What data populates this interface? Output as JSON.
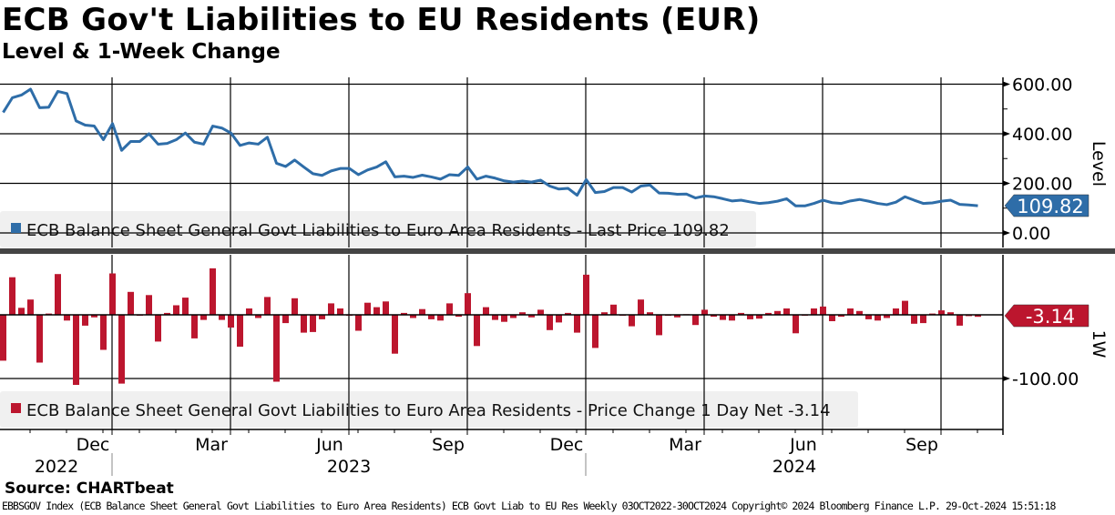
{
  "title": "ECB Gov't Liabilities to EU Residents (EUR)",
  "subtitle": "Level & 1-Week Change",
  "source": "Source: CHARTbeat",
  "footer": "EBBSGOV Index (ECB Balance Sheet General Govt Liabilities to Euro Area Residents) ECB Govt Liab to EU Res  Weekly 03OCT2022-30OCT2024 Copyright© 2024 Bloomberg Finance L.P. 29-Oct-2024 15:51:18",
  "colors": {
    "level": "#2e6da8",
    "change": "#bc162e",
    "legend_bg": "#f0f0f0",
    "divider": "#444444"
  },
  "chart_data": [
    {
      "type": "line",
      "panel": "top",
      "axis_label": "Level",
      "legend": "ECB Balance Sheet General Govt Liabilities to Euro Area Residents - Last Price 109.82",
      "last_value_label": "109.82",
      "yticks": [
        "600.00",
        "400.00",
        "200.00",
        "0.00"
      ],
      "ytick_values": [
        600,
        400,
        200,
        0
      ],
      "ylim": [
        -10,
        640
      ],
      "x_frequency": "weekly",
      "x_range": [
        "03OCT2022",
        "30OCT2024"
      ],
      "values": [
        486,
        545,
        556,
        580,
        505,
        507,
        571,
        562,
        452,
        435,
        431,
        376,
        441,
        333,
        369,
        369,
        400,
        358,
        361,
        376,
        403,
        366,
        358,
        431,
        423,
        403,
        353,
        363,
        358,
        386,
        281,
        268,
        294,
        266,
        239,
        232,
        250,
        260,
        260,
        235,
        254,
        266,
        287,
        226,
        229,
        224,
        233,
        226,
        217,
        235,
        232,
        266,
        217,
        229,
        221,
        210,
        205,
        209,
        205,
        213,
        189,
        177,
        180,
        152,
        215,
        163,
        167,
        183,
        183,
        165,
        189,
        193,
        161,
        160,
        156,
        157,
        141,
        149,
        146,
        138,
        129,
        132,
        125,
        119,
        122,
        128,
        138,
        109,
        109,
        119,
        132,
        122,
        119,
        129,
        135,
        128,
        119,
        114,
        124,
        146,
        132,
        119,
        121,
        128,
        132,
        115,
        112.96,
        109.82
      ]
    },
    {
      "type": "bar",
      "panel": "bottom",
      "axis_label": "1W",
      "legend": "ECB Balance Sheet General Govt Liabilities to Euro Area Residents - Price Change 1 Day Net -3.14",
      "last_value_label": "-3.14",
      "yticks": [
        "-100.00"
      ],
      "ytick_values": [
        -100
      ],
      "ylim": [
        -160,
        100
      ],
      "values": [
        -72,
        59,
        11,
        24,
        -75,
        2,
        64,
        -9,
        -110,
        -17,
        -4,
        -55,
        65,
        -108,
        36,
        0,
        31,
        -42,
        3,
        15,
        27,
        -37,
        -8,
        73,
        -8,
        -20,
        -50,
        10,
        -5,
        28,
        -105,
        -13,
        26,
        -28,
        -27,
        -7,
        18,
        10,
        0,
        -25,
        19,
        12,
        21,
        -61,
        3,
        -5,
        9,
        -7,
        -9,
        18,
        -3,
        34,
        -49,
        12,
        -8,
        -11,
        -5,
        4,
        -4,
        8,
        -24,
        -12,
        3,
        -28,
        63,
        -52,
        4,
        16,
        0,
        -18,
        24,
        4,
        -32,
        -1,
        -4,
        1,
        -16,
        8,
        -3,
        -8,
        -9,
        3,
        -7,
        -6,
        3,
        6,
        10,
        -29,
        0,
        10,
        13,
        -10,
        -3,
        10,
        6,
        -7,
        -9,
        -5,
        10,
        22,
        -14,
        -13,
        2,
        7,
        4,
        -17,
        -2.04,
        -3.14
      ]
    }
  ],
  "x_axis": {
    "months": [
      {
        "label": "Dec",
        "week": 12
      },
      {
        "label": "Mar",
        "week": 25
      },
      {
        "label": "Jun",
        "week": 38
      },
      {
        "label": "Sep",
        "week": 51
      },
      {
        "label": "Dec",
        "week": 64
      },
      {
        "label": "Mar",
        "week": 77
      },
      {
        "label": "Jun",
        "week": 90
      },
      {
        "label": "Sep",
        "week": 103
      }
    ],
    "years": [
      {
        "label": "2022"
      },
      {
        "label": "2023"
      },
      {
        "label": "2024"
      }
    ]
  }
}
